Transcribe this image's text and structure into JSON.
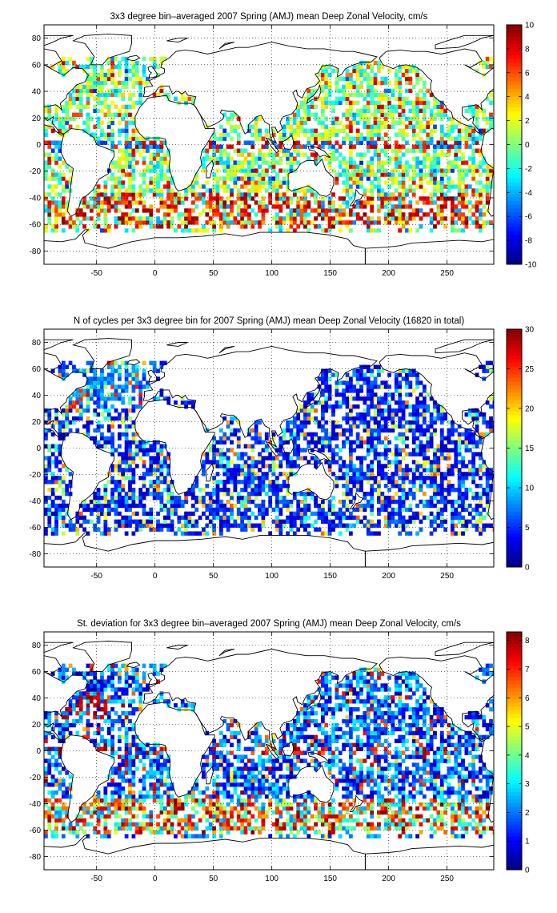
{
  "chart_data": [
    {
      "type": "heatmap",
      "title": "3x3 degree bin–averaged 2007 Spring (AMJ) mean Deep Zonal Velocity, cm/s",
      "xlabel": "",
      "ylabel": "",
      "xlim": [
        -95,
        290
      ],
      "ylim": [
        -90,
        90
      ],
      "xticks": [
        -50,
        0,
        50,
        100,
        150,
        200,
        250
      ],
      "yticks": [
        -80,
        -60,
        -40,
        -20,
        0,
        20,
        40,
        60,
        80
      ],
      "grid": true,
      "bin_size_deg": 3,
      "colorbar": {
        "colormap": "jet",
        "range": [
          -10,
          10
        ],
        "ticks": [
          -10,
          -8,
          -6,
          -4,
          -2,
          0,
          2,
          4,
          6,
          8,
          10
        ]
      },
      "pattern": "diverging"
    },
    {
      "type": "heatmap",
      "title": "N of cycles per 3x3 degree bin for 2007 Spring (AMJ) mean Deep Zonal Velocity (16820 in total)",
      "xlabel": "",
      "ylabel": "",
      "xlim": [
        -95,
        290
      ],
      "ylim": [
        -90,
        90
      ],
      "xticks": [
        -50,
        0,
        50,
        100,
        150,
        200,
        250
      ],
      "yticks": [
        -80,
        -60,
        -40,
        -20,
        0,
        20,
        40,
        60,
        80
      ],
      "grid": true,
      "bin_size_deg": 3,
      "colorbar": {
        "colormap": "jet",
        "range": [
          0,
          30
        ],
        "ticks": [
          0,
          5,
          10,
          15,
          20,
          25,
          30
        ]
      },
      "pattern": "count"
    },
    {
      "type": "heatmap",
      "title": "St. deviation for 3x3 degree bin–averaged 2007 Spring (AMJ) mean Deep Zonal Velocity, cm/s",
      "xlabel": "",
      "ylabel": "",
      "xlim": [
        -95,
        290
      ],
      "ylim": [
        -90,
        90
      ],
      "xticks": [
        -50,
        0,
        50,
        100,
        150,
        200,
        250
      ],
      "yticks": [
        -80,
        -60,
        -40,
        -20,
        0,
        20,
        40,
        60,
        80
      ],
      "grid": true,
      "bin_size_deg": 3,
      "colorbar": {
        "colormap": "jet",
        "range": [
          0,
          8.3
        ],
        "ticks": [
          0,
          1,
          2,
          3,
          4,
          5,
          6,
          7,
          8
        ]
      },
      "pattern": "stdev"
    }
  ]
}
